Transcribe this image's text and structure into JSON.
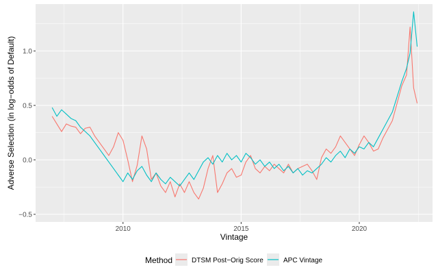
{
  "chart_data": {
    "type": "line",
    "xlabel": "Vintage",
    "ylabel": "Adverse Selection (in log−odds of Default)",
    "xlim": [
      2006.3,
      2023.1
    ],
    "ylim": [
      -0.57,
      1.43
    ],
    "x_ticks": [
      2010,
      2015,
      2020
    ],
    "x_tick_labels": [
      "2010",
      "2015",
      "2020"
    ],
    "y_ticks": [
      -0.5,
      0.0,
      0.5,
      1.0
    ],
    "y_tick_labels": [
      "−0.5",
      "0.0",
      "0.5",
      "1.0"
    ],
    "grid": true,
    "legend": {
      "title": "Method",
      "placement": "bottom"
    },
    "series": [
      {
        "name": "DTSM Post−Orig Score",
        "color": "#F8766D",
        "points": [
          [
            2007.0,
            0.4
          ],
          [
            2007.2,
            0.33
          ],
          [
            2007.4,
            0.26
          ],
          [
            2007.6,
            0.33
          ],
          [
            2007.8,
            0.31
          ],
          [
            2008.0,
            0.3
          ],
          [
            2008.2,
            0.24
          ],
          [
            2008.4,
            0.29
          ],
          [
            2008.6,
            0.3
          ],
          [
            2008.8,
            0.22
          ],
          [
            2009.0,
            0.16
          ],
          [
            2009.2,
            0.1
          ],
          [
            2009.4,
            0.04
          ],
          [
            2009.6,
            0.12
          ],
          [
            2009.8,
            0.25
          ],
          [
            2010.0,
            0.18
          ],
          [
            2010.2,
            0.0
          ],
          [
            2010.4,
            -0.2
          ],
          [
            2010.6,
            -0.05
          ],
          [
            2010.8,
            0.22
          ],
          [
            2011.0,
            0.1
          ],
          [
            2011.2,
            -0.18
          ],
          [
            2011.4,
            -0.12
          ],
          [
            2011.6,
            -0.24
          ],
          [
            2011.8,
            -0.3
          ],
          [
            2012.0,
            -0.2
          ],
          [
            2012.2,
            -0.34
          ],
          [
            2012.4,
            -0.22
          ],
          [
            2012.6,
            -0.3
          ],
          [
            2012.8,
            -0.2
          ],
          [
            2013.0,
            -0.3
          ],
          [
            2013.2,
            -0.36
          ],
          [
            2013.4,
            -0.26
          ],
          [
            2013.6,
            -0.08
          ],
          [
            2013.8,
            0.04
          ],
          [
            2014.0,
            -0.3
          ],
          [
            2014.2,
            -0.22
          ],
          [
            2014.4,
            -0.12
          ],
          [
            2014.6,
            -0.08
          ],
          [
            2014.8,
            -0.16
          ],
          [
            2015.0,
            -0.14
          ],
          [
            2015.2,
            -0.02
          ],
          [
            2015.4,
            0.04
          ],
          [
            2015.6,
            -0.08
          ],
          [
            2015.8,
            -0.12
          ],
          [
            2016.0,
            -0.06
          ],
          [
            2016.2,
            -0.1
          ],
          [
            2016.4,
            -0.04
          ],
          [
            2016.6,
            -0.08
          ],
          [
            2016.8,
            -0.12
          ],
          [
            2017.0,
            -0.04
          ],
          [
            2017.2,
            -0.12
          ],
          [
            2017.4,
            -0.08
          ],
          [
            2017.6,
            -0.06
          ],
          [
            2017.8,
            -0.04
          ],
          [
            2018.0,
            -0.1
          ],
          [
            2018.2,
            -0.18
          ],
          [
            2018.4,
            0.02
          ],
          [
            2018.6,
            0.1
          ],
          [
            2018.8,
            0.06
          ],
          [
            2019.0,
            0.12
          ],
          [
            2019.2,
            0.22
          ],
          [
            2019.4,
            0.16
          ],
          [
            2019.6,
            0.1
          ],
          [
            2019.8,
            0.04
          ],
          [
            2020.0,
            0.14
          ],
          [
            2020.2,
            0.22
          ],
          [
            2020.4,
            0.16
          ],
          [
            2020.6,
            0.08
          ],
          [
            2020.8,
            0.1
          ],
          [
            2021.0,
            0.2
          ],
          [
            2021.2,
            0.28
          ],
          [
            2021.4,
            0.36
          ],
          [
            2021.6,
            0.52
          ],
          [
            2021.8,
            0.68
          ],
          [
            2022.0,
            0.78
          ],
          [
            2022.15,
            1.22
          ],
          [
            2022.3,
            0.66
          ],
          [
            2022.45,
            0.52
          ]
        ]
      },
      {
        "name": "APC Vintage",
        "color": "#00BFC4",
        "points": [
          [
            2007.0,
            0.48
          ],
          [
            2007.2,
            0.4
          ],
          [
            2007.4,
            0.46
          ],
          [
            2007.6,
            0.42
          ],
          [
            2007.8,
            0.38
          ],
          [
            2008.0,
            0.36
          ],
          [
            2008.2,
            0.3
          ],
          [
            2008.4,
            0.26
          ],
          [
            2008.6,
            0.22
          ],
          [
            2008.8,
            0.16
          ],
          [
            2009.0,
            0.1
          ],
          [
            2009.2,
            0.04
          ],
          [
            2009.4,
            -0.02
          ],
          [
            2009.6,
            -0.08
          ],
          [
            2009.8,
            -0.14
          ],
          [
            2010.0,
            -0.2
          ],
          [
            2010.2,
            -0.12
          ],
          [
            2010.4,
            -0.18
          ],
          [
            2010.6,
            -0.1
          ],
          [
            2010.8,
            -0.06
          ],
          [
            2011.0,
            -0.14
          ],
          [
            2011.2,
            -0.2
          ],
          [
            2011.4,
            -0.12
          ],
          [
            2011.6,
            -0.18
          ],
          [
            2011.8,
            -0.22
          ],
          [
            2012.0,
            -0.16
          ],
          [
            2012.2,
            -0.2
          ],
          [
            2012.4,
            -0.24
          ],
          [
            2012.6,
            -0.18
          ],
          [
            2012.8,
            -0.12
          ],
          [
            2013.0,
            -0.18
          ],
          [
            2013.2,
            -0.1
          ],
          [
            2013.4,
            -0.02
          ],
          [
            2013.6,
            0.02
          ],
          [
            2013.8,
            -0.04
          ],
          [
            2014.0,
            0.04
          ],
          [
            2014.2,
            -0.02
          ],
          [
            2014.4,
            0.06
          ],
          [
            2014.6,
            0.0
          ],
          [
            2014.8,
            0.04
          ],
          [
            2015.0,
            -0.02
          ],
          [
            2015.2,
            0.06
          ],
          [
            2015.4,
            0.02
          ],
          [
            2015.6,
            -0.04
          ],
          [
            2015.8,
            0.0
          ],
          [
            2016.0,
            -0.06
          ],
          [
            2016.2,
            -0.02
          ],
          [
            2016.4,
            -0.08
          ],
          [
            2016.6,
            -0.04
          ],
          [
            2016.8,
            -0.1
          ],
          [
            2017.0,
            -0.06
          ],
          [
            2017.2,
            -0.12
          ],
          [
            2017.4,
            -0.08
          ],
          [
            2017.6,
            -0.14
          ],
          [
            2017.8,
            -0.1
          ],
          [
            2018.0,
            -0.12
          ],
          [
            2018.2,
            -0.08
          ],
          [
            2018.4,
            -0.04
          ],
          [
            2018.6,
            0.02
          ],
          [
            2018.8,
            -0.02
          ],
          [
            2019.0,
            0.04
          ],
          [
            2019.2,
            0.08
          ],
          [
            2019.4,
            0.02
          ],
          [
            2019.6,
            0.1
          ],
          [
            2019.8,
            0.06
          ],
          [
            2020.0,
            0.12
          ],
          [
            2020.2,
            0.1
          ],
          [
            2020.4,
            0.16
          ],
          [
            2020.6,
            0.12
          ],
          [
            2020.8,
            0.2
          ],
          [
            2021.0,
            0.28
          ],
          [
            2021.2,
            0.36
          ],
          [
            2021.4,
            0.44
          ],
          [
            2021.6,
            0.58
          ],
          [
            2021.8,
            0.72
          ],
          [
            2022.0,
            0.84
          ],
          [
            2022.15,
            0.98
          ],
          [
            2022.3,
            1.36
          ],
          [
            2022.45,
            1.04
          ]
        ]
      }
    ]
  }
}
